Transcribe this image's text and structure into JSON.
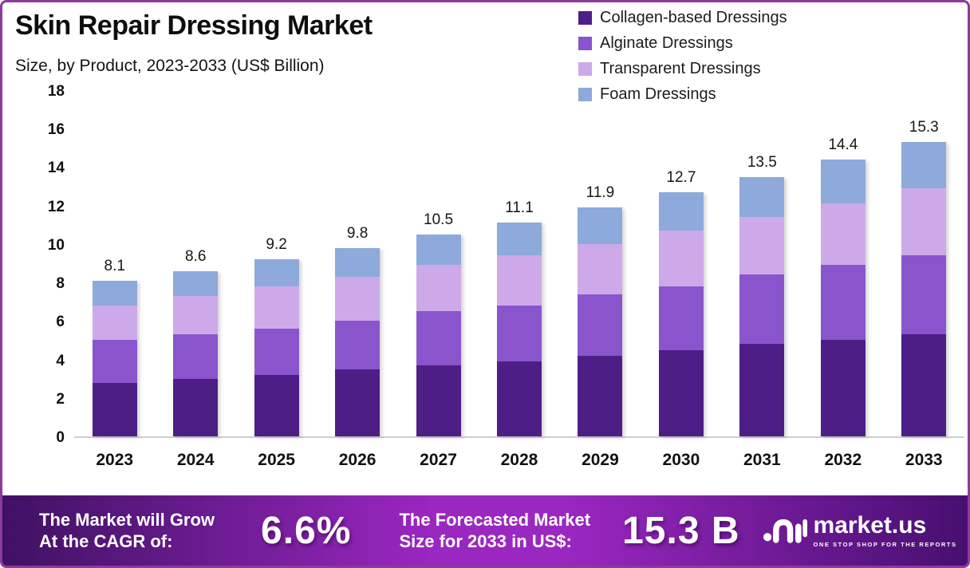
{
  "header": {
    "title": "Skin Repair Dressing Market",
    "subtitle": "Size, by Product, 2023-2033 (US$ Billion)"
  },
  "chart_data": {
    "type": "bar",
    "stacked": true,
    "categories": [
      "2023",
      "2024",
      "2025",
      "2026",
      "2027",
      "2028",
      "2029",
      "2030",
      "2031",
      "2032",
      "2033"
    ],
    "series": [
      {
        "name": "Collagen-based Dressings",
        "color": "#4E1E87",
        "values": [
          2.8,
          3.0,
          3.2,
          3.5,
          3.7,
          3.9,
          4.2,
          4.5,
          4.8,
          5.0,
          5.3
        ]
      },
      {
        "name": "Alginate Dressings",
        "color": "#8A55CC",
        "values": [
          2.2,
          2.3,
          2.4,
          2.5,
          2.8,
          2.9,
          3.2,
          3.3,
          3.6,
          3.9,
          4.1
        ]
      },
      {
        "name": "Transparent Dressings",
        "color": "#CDA9EA",
        "values": [
          1.8,
          2.0,
          2.2,
          2.3,
          2.4,
          2.6,
          2.6,
          2.9,
          3.0,
          3.2,
          3.5
        ]
      },
      {
        "name": "Foam Dressings",
        "color": "#8EA9DB",
        "values": [
          1.3,
          1.3,
          1.4,
          1.5,
          1.6,
          1.7,
          1.9,
          2.0,
          2.1,
          2.3,
          2.4
        ]
      }
    ],
    "totals": [
      8.1,
      8.6,
      9.2,
      9.8,
      10.5,
      11.1,
      11.9,
      12.7,
      13.5,
      14.4,
      15.3
    ],
    "ylim": [
      0,
      18
    ],
    "yticks": [
      0,
      2,
      4,
      6,
      8,
      10,
      12,
      14,
      16,
      18
    ],
    "grid": false,
    "legend_position": "top-right",
    "xlabel": "",
    "ylabel": ""
  },
  "banner": {
    "cagr_label_line1": "The Market will Grow",
    "cagr_label_line2": "At the CAGR of:",
    "cagr_value": "6.6%",
    "forecast_label_line1": "The Forecasted Market",
    "forecast_label_line2": "Size for 2033 in US$:",
    "forecast_value": "15.3 B",
    "brand_name": "market.us",
    "brand_tagline": "ONE STOP SHOP FOR THE REPORTS"
  },
  "colors": {
    "frame_border": "#8C3A9E",
    "axis_line": "#CFCFCF",
    "banner_gradient": [
      "#3F1163",
      "#9B27C1",
      "#470F70"
    ],
    "text_dark": "#141414",
    "banner_text": "#FFFFFF"
  }
}
